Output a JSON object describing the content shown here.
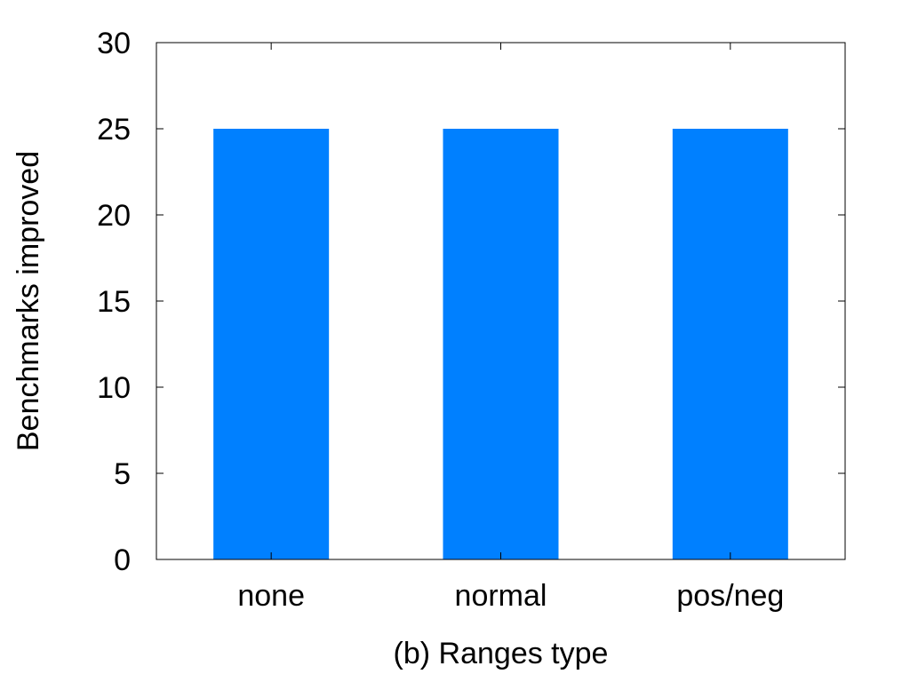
{
  "chart_data": {
    "type": "bar",
    "title": "",
    "xlabel": "(b) Ranges type",
    "ylabel": "Benchmarks improved",
    "categories": [
      "none",
      "normal",
      "pos/neg"
    ],
    "values": [
      25,
      25,
      25
    ],
    "ylim": [
      0,
      30
    ],
    "yticks": [
      0,
      5,
      10,
      15,
      20,
      25,
      30
    ],
    "grid": false,
    "bar_color": "#0080ff"
  }
}
